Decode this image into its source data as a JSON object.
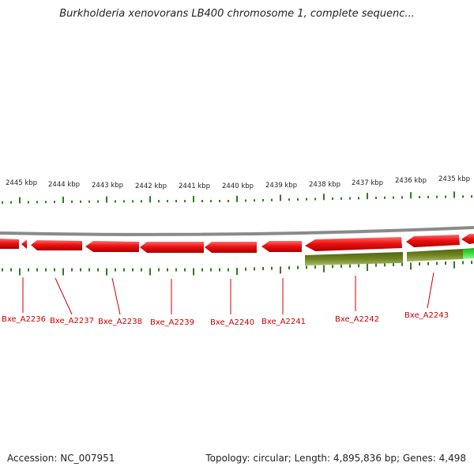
{
  "header": {
    "title": "Burkholderia xenovorans LB400 chromosome 1, complete sequenc..."
  },
  "footer": {
    "accession": "Accession: NC_007951",
    "stats": "Topology: circular; Length: 4,895,836 bp; Genes: 4,498"
  },
  "ruler": {
    "ticks": [
      "2445 kbp",
      "2444 kbp",
      "2443 kbp",
      "2442 kbp",
      "2441 kbp",
      "2440 kbp",
      "2439 kbp",
      "2438 kbp",
      "2437 kbp",
      "2436 kbp",
      "2435 kbp"
    ]
  },
  "genes": [
    "Bxe_A2236",
    "Bxe_A2237",
    "Bxe_A2238",
    "Bxe_A2239",
    "Bxe_A2240",
    "Bxe_A2241",
    "Bxe_A2242",
    "Bxe_A2243"
  ],
  "colors": {
    "cds": "#ee1111",
    "rna_dark": "#6b7f1f",
    "rna_light": "#33dd33",
    "tick": "#2e7d1e",
    "label": "#cc0000",
    "backbone": "#8a8a8a"
  }
}
